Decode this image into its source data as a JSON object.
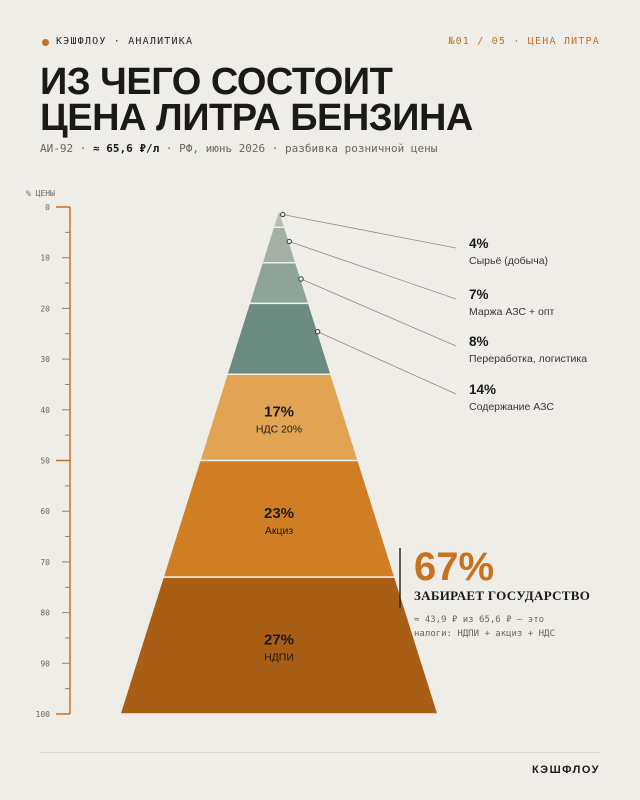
{
  "header": {
    "brand": "КЭШФЛОУ · АНАЛИТИКА",
    "series_tag": "№01 / 05 · ЦЕНА ЛИТРА"
  },
  "title_line1": "ИЗ ЧЕГО СОСТОИТ",
  "title_line2": "ЦЕНА ЛИТРА БЕНЗИНА",
  "subtitle": {
    "part1": "АИ-92 · ",
    "price": "≈ 65,6 ₽/л",
    "part2": " · РФ, июнь 2026 · разбивка розничной цены"
  },
  "callout": {
    "value": "67%",
    "label": "ЗАБИРАЕТ ГОСУДАРСТВО",
    "note_line1": "≈ 43,9 ₽ из 65,6 ₽ — это",
    "note_line2": "налоги: НДПИ + акциз + НДС"
  },
  "footer": {
    "brand": "КЭШФЛОУ"
  },
  "colors": {
    "tax_dark": "#a85e15",
    "tax_mid": "#cf7e23",
    "tax_light": "#e2a452",
    "other_1": "#b8bcb2",
    "other_2": "#a4afa5",
    "other_3": "#8ea49b",
    "other_4": "#6b8a80",
    "axis": "#c8711f",
    "leader": "#8f8c86"
  },
  "chart_data": {
    "type": "pyramid",
    "ylabel": "% ЦЕНЫ",
    "ylim": [
      0,
      100
    ],
    "y_ticks": [
      0,
      10,
      20,
      30,
      40,
      50,
      60,
      70,
      80,
      90,
      100
    ],
    "segments": [
      {
        "label": "Сырьё (добыча)",
        "value": 4,
        "value_label": "4%",
        "color": "#b8bcb2",
        "label_side": "outside"
      },
      {
        "label": "Маржа АЗС + опт",
        "value": 7,
        "value_label": "7%",
        "color": "#a4afa5",
        "label_side": "outside"
      },
      {
        "label": "Переработка, логистика",
        "value": 8,
        "value_label": "8%",
        "color": "#8ea49b",
        "label_side": "outside"
      },
      {
        "label": "Содержание АЗС",
        "value": 14,
        "value_label": "14%",
        "color": "#6b8a80",
        "label_side": "outside"
      },
      {
        "label": "НДС 20%",
        "value": 17,
        "value_label": "17%",
        "color": "#e2a452",
        "label_side": "inside"
      },
      {
        "label": "Акциз",
        "value": 23,
        "value_label": "23%",
        "color": "#cf7e23",
        "label_side": "inside"
      },
      {
        "label": "НДПИ",
        "value": 27,
        "value_label": "27%",
        "color": "#a85e15",
        "label_side": "inside"
      }
    ]
  }
}
